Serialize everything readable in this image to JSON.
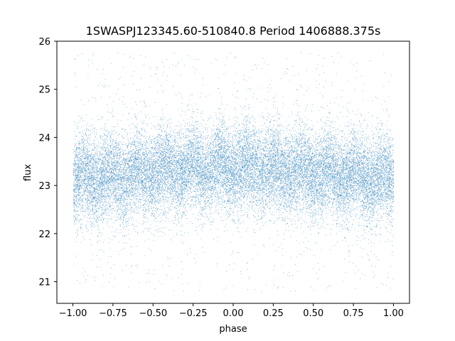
{
  "chart_data": {
    "type": "scatter",
    "title": "1SWASPJ123345.60-510840.8 Period 1406888.375s",
    "xlabel": "phase",
    "ylabel": "flux",
    "xlim": [
      -1.1,
      1.1
    ],
    "ylim": [
      20.55,
      26.0
    ],
    "xticks": [
      -1.0,
      -0.75,
      -0.5,
      -0.25,
      0.0,
      0.25,
      0.5,
      0.75,
      1.0
    ],
    "xtick_labels": [
      "−1.00",
      "−0.75",
      "−0.50",
      "−0.25",
      "0.00",
      "0.25",
      "0.50",
      "0.75",
      "1.00"
    ],
    "yticks": [
      21,
      22,
      23,
      24,
      25,
      26
    ],
    "ytick_labels": [
      "21",
      "22",
      "23",
      "24",
      "25",
      "26"
    ],
    "grid": false,
    "marker_color": "#1f77b4",
    "series": [
      {
        "phase_range": [
          -1.0,
          1.0
        ],
        "flux_center": 23.25,
        "flux_core_spread": 0.45,
        "flux_outlier_range": [
          20.8,
          25.8
        ],
        "approx_points": 24000
      }
    ]
  }
}
